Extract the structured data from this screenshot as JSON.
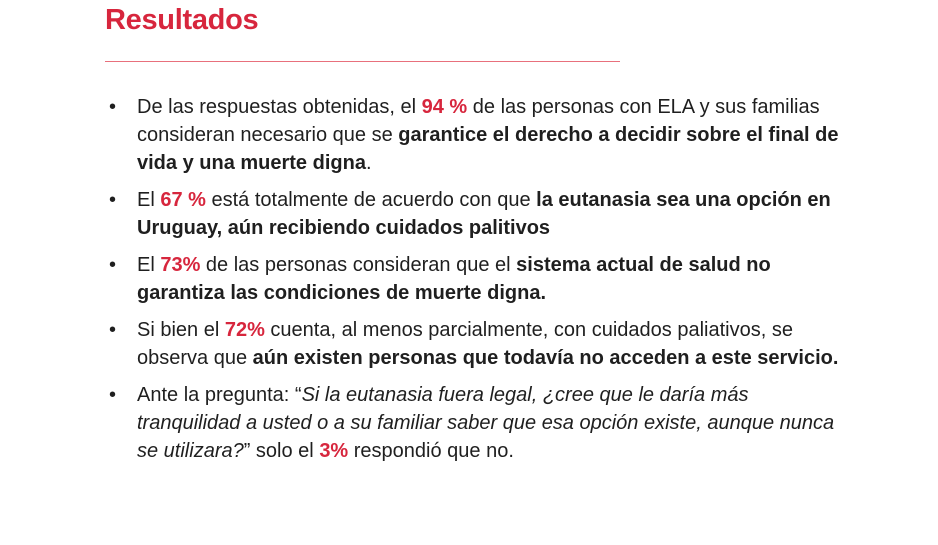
{
  "section": {
    "title": "Resultados"
  },
  "results": [
    {
      "t1": "De las respuestas obtenidas, el ",
      "p1": "94 %",
      "t2": " de las personas con ELA y sus familias consideran necesario que se ",
      "b1": "garantice el derecho a decidir sobre el final de vida y una muerte digna",
      "t3": "."
    },
    {
      "t1": "El ",
      "p1": "67 %",
      "t2": " está totalmente de acuerdo con que ",
      "b1": "la eutanasia sea una opción en Uruguay, aún recibiendo cuidados palitivos",
      "t3": ""
    },
    {
      "t1": "El ",
      "p1": "73%",
      "t2": " de las personas consideran que el ",
      "b1": "sistema actual de salud no garantiza las condiciones de muerte digna.",
      "t3": ""
    },
    {
      "t1": "Si bien el ",
      "p1": "72%",
      "t2": " cuenta, al menos parcialmente,  con cuidados paliativos, se observa que ",
      "b1": "aún existen personas que todavía no acceden a este servicio.",
      "t3": ""
    },
    {
      "t1": "Ante la pregunta: “",
      "q1": "Si la eutanasia fuera legal, ¿cree que le daría más tranquilidad a usted o a su familiar saber que esa opción existe, aunque nunca se utilizara?",
      "t2": "” solo el ",
      "p1": "3%",
      "t3": " respondió que no."
    }
  ]
}
